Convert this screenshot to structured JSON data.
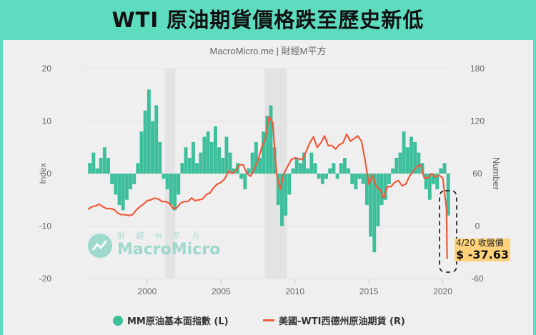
{
  "title": "WTI 原油期貨價格跌至歷史新低",
  "colors": {
    "banner": "#5ddcc0",
    "index": "#3dbf9c",
    "wti": "#f05a3c",
    "annotation_bg": "#fdd27a"
  },
  "watermark": {
    "cn": "財 經 M 平 方",
    "en": "MacroMicro"
  },
  "annotation": {
    "date_label": "4/20 收盤價",
    "value_label": "$ -37.63"
  },
  "chart_data": {
    "type": "bar+line",
    "subtitle": "MacroMicro.me | 財經M平方",
    "xlabel": "",
    "ylabel_left": "Index",
    "ylabel_right": "Number",
    "x_ticks": [
      "2000",
      "2005",
      "2010",
      "2015",
      "2020"
    ],
    "x_range": [
      1995.7,
      2020.7
    ],
    "ylim_left": [
      -20,
      20
    ],
    "yticks_left": [
      "20",
      "10",
      "0",
      "-10",
      "-20"
    ],
    "ylim_right": [
      -60,
      180
    ],
    "yticks_right": [
      "180",
      "120",
      "60",
      "0",
      "-60"
    ],
    "grid": true,
    "legend_position": "bottom",
    "shaded_periods": [
      [
        2001.2,
        2001.9
      ],
      [
        2007.95,
        2009.45
      ]
    ],
    "x_start": 1996.0,
    "x_step": 0.25,
    "series": [
      {
        "name": "MM原油基本面指數 (L)",
        "type": "bar",
        "axis": "left",
        "values": [
          2,
          4,
          1,
          3,
          5,
          3,
          -2,
          -4,
          -6,
          -7,
          -5,
          -3,
          -2,
          2,
          8,
          12,
          16,
          10,
          13,
          6,
          -1,
          -3,
          -6,
          -7,
          -4,
          2,
          5,
          3,
          6,
          2,
          4,
          7,
          8,
          6,
          9,
          5,
          3,
          7,
          4,
          1,
          2,
          -1,
          -3,
          1,
          4,
          6,
          3,
          8,
          11,
          13,
          5,
          -6,
          -10,
          -8,
          -4,
          1,
          3,
          2,
          4,
          1,
          4,
          2,
          -1,
          -2,
          -1,
          1,
          2,
          -1,
          2,
          3,
          1,
          -2,
          -3,
          -1,
          -2,
          -6,
          -12,
          -15,
          -10,
          -6,
          -5,
          -2,
          1,
          3,
          4,
          8,
          5,
          7,
          6,
          4,
          2,
          -3,
          -5,
          -2,
          -3,
          1,
          2,
          -8
        ]
      },
      {
        "name": "美國-WTI西德州原油期貨 (R)",
        "type": "line",
        "axis": "right",
        "values": [
          19,
          22,
          23,
          25,
          22,
          20,
          20,
          19,
          15,
          13,
          13,
          12,
          13,
          18,
          22,
          25,
          29,
          30,
          32,
          31,
          28,
          28,
          26,
          20,
          21,
          26,
          28,
          28,
          32,
          29,
          30,
          31,
          36,
          38,
          44,
          48,
          50,
          54,
          63,
          60,
          63,
          70,
          70,
          60,
          57,
          65,
          75,
          90,
          100,
          125,
          118,
          60,
          42,
          60,
          68,
          76,
          78,
          77,
          76,
          85,
          95,
          102,
          90,
          95,
          103,
          92,
          92,
          88,
          93,
          95,
          105,
          97,
          100,
          103,
          97,
          75,
          48,
          58,
          45,
          42,
          32,
          45,
          45,
          50,
          52,
          46,
          48,
          57,
          63,
          68,
          70,
          55,
          55,
          60,
          56,
          58,
          55,
          20
        ],
        "last_point": {
          "x": 2020.3,
          "value": -37.63
        }
      }
    ]
  }
}
